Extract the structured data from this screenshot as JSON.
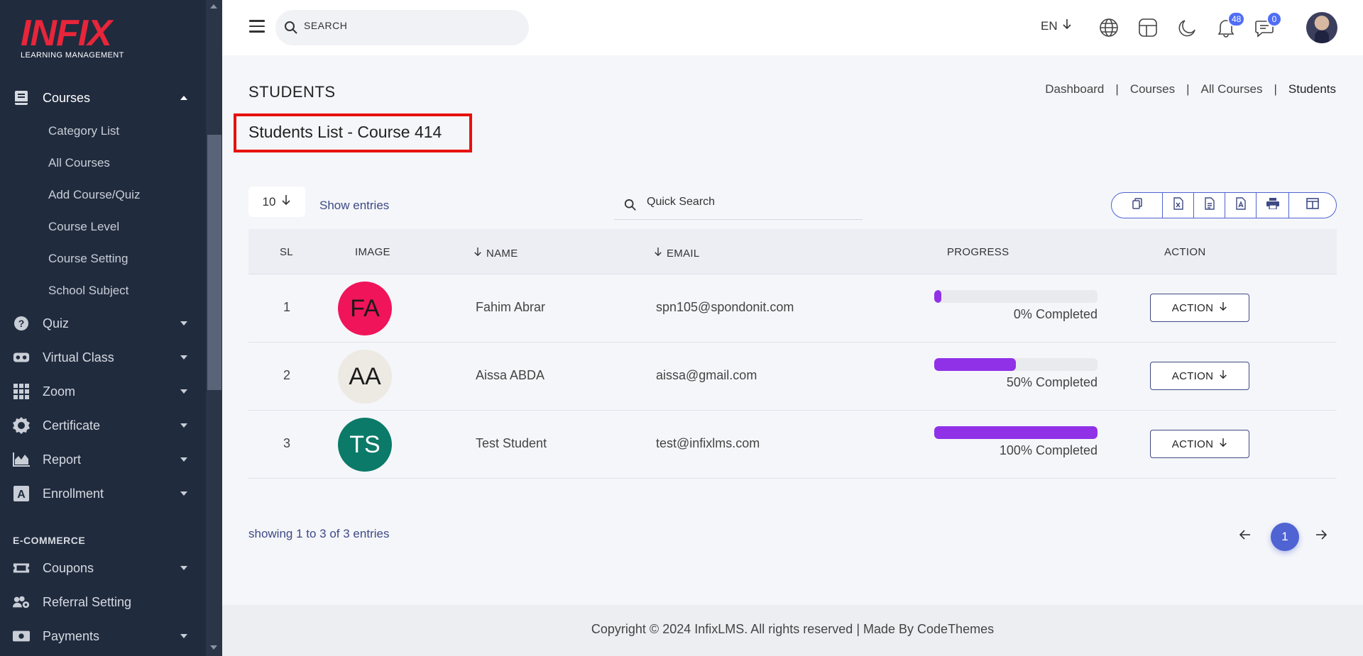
{
  "brand": {
    "logo_text": "INFIX",
    "logo_subtitle": "LEARNING MANAGEMENT",
    "logo_color": "#e8253a"
  },
  "sidebar": {
    "courses": {
      "label": "Courses",
      "children": [
        "Category List",
        "All Courses",
        "Add Course/Quiz",
        "Course Level",
        "Course Setting",
        "School Subject"
      ]
    },
    "items": [
      {
        "label": "Quiz",
        "icon": "question-circle-icon"
      },
      {
        "label": "Virtual Class",
        "icon": "vr-headset-icon"
      },
      {
        "label": "Zoom",
        "icon": "grid-icon"
      },
      {
        "label": "Certificate",
        "icon": "certificate-icon"
      },
      {
        "label": "Report",
        "icon": "chart-area-icon"
      },
      {
        "label": "Enrollment",
        "icon": "font-box-icon"
      }
    ],
    "section_ecommerce": "E-COMMERCE",
    "ecommerce_items": [
      {
        "label": "Coupons",
        "icon": "ticket-icon"
      },
      {
        "label": "Referral Setting",
        "icon": "users-gear-icon"
      },
      {
        "label": "Payments",
        "icon": "money-icon"
      }
    ]
  },
  "header": {
    "search_placeholder": "SEARCH",
    "language": "EN",
    "notifications_count": "48",
    "messages_count": "0",
    "accent": "#4f6df5"
  },
  "page": {
    "title": "STUDENTS",
    "breadcrumb": [
      "Dashboard",
      "Courses",
      "All Courses",
      "Students"
    ],
    "list_title": "Students List - Course 414"
  },
  "controls": {
    "entries_value": "10",
    "entries_label": "Show entries",
    "quick_search_placeholder": "Quick Search",
    "export_buttons": [
      "copy-icon",
      "excel-icon",
      "csv-icon",
      "pdf-icon",
      "print-icon",
      "columns-icon"
    ]
  },
  "table": {
    "headers": {
      "sl": "SL",
      "image": "IMAGE",
      "name": "NAME",
      "email": "EMAIL",
      "progress": "PROGRESS",
      "action": "ACTION"
    },
    "rows": [
      {
        "sl": "1",
        "initials": "FA",
        "avatar_color": "#f0145a",
        "text_color": "#1a1a1a",
        "name": "Fahim Abrar",
        "email": "spn105@spondonit.com",
        "progress": 0,
        "progress_label": "0% Completed",
        "action": "ACTION"
      },
      {
        "sl": "2",
        "initials": "AA",
        "avatar_color": "#ede9e3",
        "text_color": "#1a1a1a",
        "name": "Aissa ABDA",
        "email": "aissa@gmail.com",
        "progress": 50,
        "progress_label": "50% Completed",
        "action": "ACTION"
      },
      {
        "sl": "3",
        "initials": "TS",
        "avatar_color": "#0b7a68",
        "text_color": "#ffffff",
        "name": "Test Student",
        "email": "test@infixlms.com",
        "progress": 100,
        "progress_label": "100% Completed",
        "action": "ACTION"
      }
    ],
    "progress_color": "#9031e8"
  },
  "pagination": {
    "showing": "showing 1 to 3 of 3 entries",
    "current_page": "1"
  },
  "footer": {
    "text": "Copyright © 2024 InfixLMS. All rights reserved | Made By CodeThemes"
  }
}
